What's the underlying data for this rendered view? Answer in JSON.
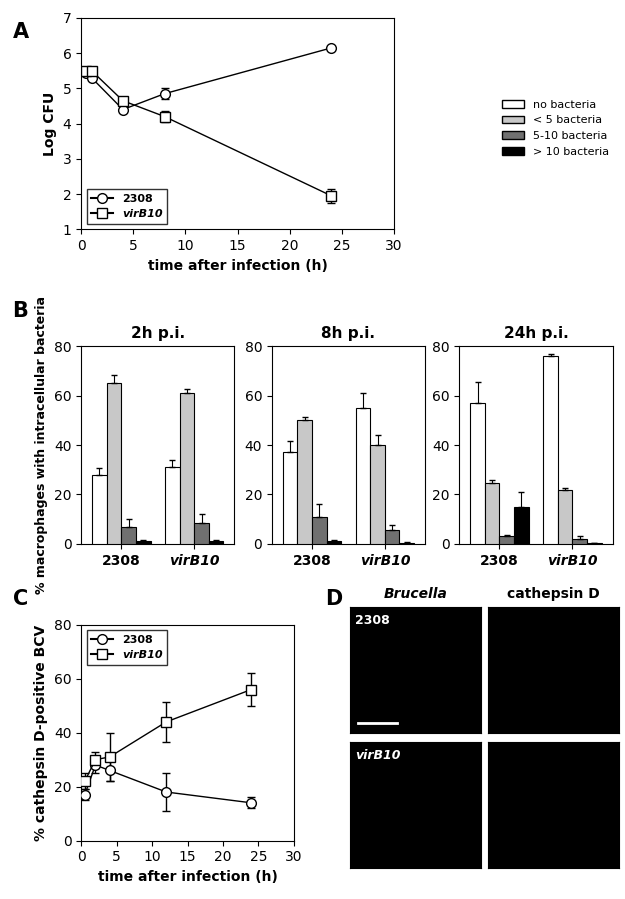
{
  "chart_data": [
    {
      "type": "line",
      "annotations": [
        "A"
      ],
      "x_label": "time after infection (h)",
      "y_label": "Log CFU",
      "xlim": [
        0,
        30
      ],
      "xticks": [
        0,
        5,
        10,
        15,
        20,
        25,
        30
      ],
      "ylim": [
        1,
        7
      ],
      "yticks": [
        1,
        2,
        3,
        4,
        5,
        6,
        7
      ],
      "legend": "lower left",
      "series": [
        {
          "name": "2308",
          "color": "#000000",
          "marker": "circle",
          "x": [
            0.5,
            1,
            4,
            8,
            24
          ],
          "values": [
            5.45,
            5.3,
            4.4,
            4.85,
            6.15
          ],
          "errors": [
            0.05,
            0.05,
            0.05,
            0.15,
            0.05
          ]
        },
        {
          "name": "virB10",
          "color": "#000000",
          "marker": "square",
          "x": [
            0.5,
            1,
            4,
            8,
            24
          ],
          "values": [
            5.5,
            5.5,
            4.65,
            4.2,
            1.95
          ],
          "errors": [
            0.05,
            0.05,
            0.05,
            0.15,
            0.2
          ]
        }
      ]
    },
    {
      "type": "bar",
      "annotations": [
        "B"
      ],
      "title": "2h p.i.",
      "y_label": "% macrophages with intracellular bacteria",
      "categories": [
        "2308",
        "virB10"
      ],
      "ylim": [
        0,
        80
      ],
      "yticks": [
        0,
        20,
        40,
        60,
        80
      ],
      "legend": "upper right",
      "series": [
        {
          "name": "no bacteria",
          "color": "#ffffff",
          "values": [
            28,
            31
          ],
          "errors": [
            2.5,
            3
          ]
        },
        {
          "name": "< 5 bacteria",
          "color": "#c8c8c8",
          "values": [
            65,
            61
          ],
          "errors": [
            3.5,
            1.5
          ]
        },
        {
          "name": "5-10 bacteria",
          "color": "#707070",
          "values": [
            7,
            8.5
          ],
          "errors": [
            3,
            3.5
          ]
        },
        {
          "name": "> 10 bacteria",
          "color": "#000000",
          "values": [
            1,
            1
          ],
          "errors": [
            0.5,
            0.5
          ]
        }
      ]
    },
    {
      "type": "bar",
      "title": "8h p.i.",
      "categories": [
        "2308",
        "virB10"
      ],
      "ylim": [
        0,
        80
      ],
      "yticks": [
        0,
        20,
        40,
        60,
        80
      ],
      "series": [
        {
          "name": "no bacteria",
          "color": "#ffffff",
          "values": [
            37,
            55
          ],
          "errors": [
            4.5,
            6
          ]
        },
        {
          "name": "< 5 bacteria",
          "color": "#c8c8c8",
          "values": [
            50,
            40
          ],
          "errors": [
            1.5,
            4
          ]
        },
        {
          "name": "5-10 bacteria",
          "color": "#707070",
          "values": [
            11,
            5.5
          ],
          "errors": [
            5,
            2
          ]
        },
        {
          "name": "> 10 bacteria",
          "color": "#000000",
          "values": [
            1,
            0.5
          ],
          "errors": [
            0.5,
            0.3
          ]
        }
      ]
    },
    {
      "type": "bar",
      "title": "24h p.i.",
      "categories": [
        "2308",
        "virB10"
      ],
      "ylim": [
        0,
        80
      ],
      "yticks": [
        0,
        20,
        40,
        60,
        80
      ],
      "series": [
        {
          "name": "no bacteria",
          "color": "#ffffff",
          "values": [
            57,
            76
          ],
          "errors": [
            8.5,
            1
          ]
        },
        {
          "name": "< 5 bacteria",
          "color": "#c8c8c8",
          "values": [
            24.5,
            22
          ],
          "errors": [
            1.5,
            0.5
          ]
        },
        {
          "name": "5-10 bacteria",
          "color": "#707070",
          "values": [
            3,
            2
          ],
          "errors": [
            0.7,
            1
          ]
        },
        {
          "name": "> 10 bacteria",
          "color": "#000000",
          "values": [
            15,
            0.2
          ],
          "errors": [
            6,
            0.1
          ]
        }
      ]
    },
    {
      "type": "line",
      "annotations": [
        "C"
      ],
      "x_label": "time after infection (h)",
      "y_label": "% cathepsin D-positive BCV",
      "xlim": [
        0,
        30
      ],
      "xticks": [
        0,
        5,
        10,
        15,
        20,
        25,
        30
      ],
      "ylim": [
        0,
        80
      ],
      "yticks": [
        0,
        20,
        40,
        60,
        80
      ],
      "legend": "upper left",
      "series": [
        {
          "name": "2308",
          "color": "#000000",
          "marker": "circle",
          "x": [
            0.5,
            2,
            4,
            12,
            24
          ],
          "values": [
            17,
            28,
            26,
            18,
            14
          ],
          "errors": [
            2,
            3,
            4,
            7,
            2
          ]
        },
        {
          "name": "virB10",
          "color": "#000000",
          "marker": "square",
          "x": [
            0.5,
            2,
            4,
            12,
            24
          ],
          "values": [
            22,
            30,
            31,
            44,
            56
          ],
          "errors": [
            3,
            3,
            9,
            7.5,
            6
          ]
        }
      ]
    },
    {
      "type": "image",
      "annotations": [
        "D"
      ],
      "columns": [
        "Brucella",
        "cathepsin D"
      ],
      "rows": [
        "2308",
        "virB10"
      ]
    }
  ]
}
